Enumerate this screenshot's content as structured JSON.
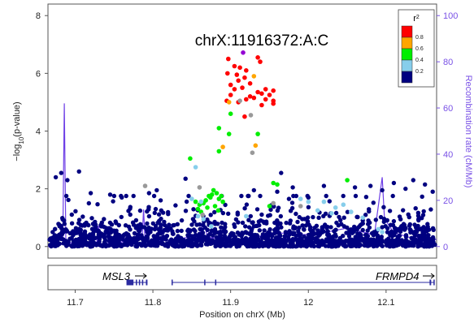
{
  "chart_data": {
    "type": "scatter",
    "title": "chrX:11916372:A:C",
    "xlabel": "Position on chrX (Mb)",
    "ylabel_left": "-log10(p-value)",
    "ylabel_left_base": "−log",
    "ylabel_left_sub": "10",
    "ylabel_left_rest": "(p-value)",
    "ylabel_right": "Recombination rate (cM/Mb)",
    "xlim": [
      11.665,
      12.165
    ],
    "ylim_left": [
      -0.4,
      8.4
    ],
    "ylim_right": [
      -5,
      105
    ],
    "x_ticks": [
      11.7,
      11.8,
      11.9,
      12.0,
      12.1
    ],
    "x_tick_labels": [
      "11.7",
      "11.8",
      "11.9",
      "12",
      "12.1"
    ],
    "y_left_ticks": [
      0,
      2,
      4,
      6,
      8
    ],
    "y_left_tick_labels": [
      "0",
      "2",
      "4",
      "6",
      "8"
    ],
    "y_right_ticks": [
      0,
      20,
      40,
      60,
      80,
      100
    ],
    "y_right_tick_labels": [
      "0",
      "20",
      "40",
      "60",
      "80",
      "100"
    ],
    "legend": {
      "title": "r",
      "title_sup": "2",
      "placement": "top-right",
      "entries": [
        {
          "label": "0.8",
          "color": "#ff0000"
        },
        {
          "label": "0.6",
          "color": "#ffa500"
        },
        {
          "label": "0.4",
          "color": "#00ee00"
        },
        {
          "label": "0.2",
          "color": "#87ceeb"
        },
        {
          "label": "",
          "color": "#000080"
        }
      ]
    },
    "colors": {
      "lead": "#9400d3",
      "r2_08": "#ff0000",
      "r2_06": "#ffa500",
      "r2_04": "#00ee00",
      "r2_02": "#87ceeb",
      "r2_00": "#000080",
      "na": "#999999",
      "recomb": "#6e3fe6",
      "right_axis": "#7a52e6"
    },
    "recombination": [
      [
        11.665,
        0
      ],
      [
        11.684,
        1
      ],
      [
        11.686,
        62
      ],
      [
        11.688,
        2
      ],
      [
        11.705,
        1
      ],
      [
        11.728,
        2
      ],
      [
        11.73,
        9
      ],
      [
        11.733,
        1
      ],
      [
        11.76,
        2
      ],
      [
        11.786,
        3
      ],
      [
        11.788,
        16
      ],
      [
        11.79,
        2
      ],
      [
        11.83,
        3
      ],
      [
        11.86,
        5
      ],
      [
        11.865,
        12
      ],
      [
        11.87,
        4
      ],
      [
        11.9,
        3
      ],
      [
        11.93,
        4
      ],
      [
        11.96,
        6
      ],
      [
        11.99,
        5
      ],
      [
        12.02,
        6
      ],
      [
        12.05,
        8
      ],
      [
        12.085,
        5
      ],
      [
        12.095,
        30
      ],
      [
        12.098,
        12
      ],
      [
        12.11,
        6
      ],
      [
        12.13,
        4
      ],
      [
        12.165,
        3
      ]
    ],
    "snps_highlight": [
      {
        "x": 11.916,
        "y": 6.72,
        "r2": "lead"
      },
      {
        "x": 11.935,
        "y": 6.55,
        "r2": "0.8"
      },
      {
        "x": 11.938,
        "y": 6.4,
        "r2": "0.8"
      },
      {
        "x": 11.897,
        "y": 6.5,
        "r2": "0.8"
      },
      {
        "x": 11.905,
        "y": 6.25,
        "r2": "0.8"
      },
      {
        "x": 11.912,
        "y": 6.2,
        "r2": "0.8"
      },
      {
        "x": 11.92,
        "y": 6.1,
        "r2": "0.8"
      },
      {
        "x": 11.896,
        "y": 6.0,
        "r2": "0.8"
      },
      {
        "x": 11.908,
        "y": 5.95,
        "r2": "0.8"
      },
      {
        "x": 11.918,
        "y": 5.85,
        "r2": "0.8"
      },
      {
        "x": 11.91,
        "y": 5.75,
        "r2": "0.8"
      },
      {
        "x": 11.925,
        "y": 5.65,
        "r2": "0.8"
      },
      {
        "x": 11.9,
        "y": 5.6,
        "r2": "0.8"
      },
      {
        "x": 11.915,
        "y": 5.5,
        "r2": "0.8"
      },
      {
        "x": 11.905,
        "y": 5.45,
        "r2": "0.8"
      },
      {
        "x": 11.945,
        "y": 5.45,
        "r2": "0.8"
      },
      {
        "x": 11.955,
        "y": 5.4,
        "r2": "0.8"
      },
      {
        "x": 11.935,
        "y": 5.35,
        "r2": "0.8"
      },
      {
        "x": 11.94,
        "y": 5.3,
        "r2": "0.8"
      },
      {
        "x": 11.95,
        "y": 5.25,
        "r2": "0.8"
      },
      {
        "x": 11.925,
        "y": 5.2,
        "r2": "0.8"
      },
      {
        "x": 11.93,
        "y": 5.15,
        "r2": "0.8"
      },
      {
        "x": 11.92,
        "y": 5.1,
        "r2": "0.8"
      },
      {
        "x": 11.945,
        "y": 5.1,
        "r2": "0.8"
      },
      {
        "x": 11.955,
        "y": 5.05,
        "r2": "0.8"
      },
      {
        "x": 11.9,
        "y": 5.25,
        "r2": "0.8"
      },
      {
        "x": 11.895,
        "y": 5.05,
        "r2": "0.8"
      },
      {
        "x": 11.91,
        "y": 5.0,
        "r2": "0.8"
      },
      {
        "x": 11.955,
        "y": 4.95,
        "r2": "0.8"
      },
      {
        "x": 11.94,
        "y": 4.9,
        "r2": "0.8"
      },
      {
        "x": 11.918,
        "y": 4.5,
        "r2": "0.8"
      },
      {
        "x": 11.93,
        "y": 5.9,
        "r2": "0.6"
      },
      {
        "x": 11.932,
        "y": 3.5,
        "r2": "0.6"
      },
      {
        "x": 11.89,
        "y": 3.45,
        "r2": "0.6"
      },
      {
        "x": 11.898,
        "y": 5.0,
        "r2": "0.6"
      },
      {
        "x": 11.9,
        "y": 4.6,
        "r2": "0.4"
      },
      {
        "x": 11.885,
        "y": 4.1,
        "r2": "0.4"
      },
      {
        "x": 11.898,
        "y": 3.9,
        "r2": "0.4"
      },
      {
        "x": 11.935,
        "y": 3.9,
        "r2": "0.4"
      },
      {
        "x": 11.885,
        "y": 3.3,
        "r2": "0.4"
      },
      {
        "x": 11.848,
        "y": 3.05,
        "r2": "0.4"
      },
      {
        "x": 11.955,
        "y": 2.2,
        "r2": "0.4"
      },
      {
        "x": 11.96,
        "y": 2.15,
        "r2": "0.4"
      },
      {
        "x": 12.05,
        "y": 2.3,
        "r2": "0.4"
      },
      {
        "x": 11.878,
        "y": 1.95,
        "r2": "0.4"
      },
      {
        "x": 11.882,
        "y": 1.85,
        "r2": "0.4"
      },
      {
        "x": 11.876,
        "y": 1.8,
        "r2": "0.4"
      },
      {
        "x": 11.872,
        "y": 1.75,
        "r2": "0.4"
      },
      {
        "x": 11.868,
        "y": 1.6,
        "r2": "0.4"
      },
      {
        "x": 11.874,
        "y": 1.7,
        "r2": "0.4"
      },
      {
        "x": 11.885,
        "y": 1.65,
        "r2": "0.4"
      },
      {
        "x": 11.888,
        "y": 1.75,
        "r2": "0.4"
      },
      {
        "x": 11.865,
        "y": 1.5,
        "r2": "0.4"
      },
      {
        "x": 11.86,
        "y": 1.45,
        "r2": "0.4"
      },
      {
        "x": 11.858,
        "y": 1.3,
        "r2": "0.4"
      },
      {
        "x": 11.88,
        "y": 1.4,
        "r2": "0.4"
      },
      {
        "x": 11.87,
        "y": 1.35,
        "r2": "0.4"
      },
      {
        "x": 11.855,
        "y": 1.55,
        "r2": "0.4"
      },
      {
        "x": 11.862,
        "y": 1.2,
        "r2": "0.4"
      },
      {
        "x": 11.89,
        "y": 1.55,
        "r2": "0.4"
      },
      {
        "x": 11.884,
        "y": 1.25,
        "r2": "0.4"
      },
      {
        "x": 11.95,
        "y": 1.4,
        "r2": "0.4"
      },
      {
        "x": 11.855,
        "y": 2.75,
        "r2": "0.2"
      },
      {
        "x": 11.85,
        "y": 1.65,
        "r2": "0.2"
      },
      {
        "x": 11.862,
        "y": 1.55,
        "r2": "0.2"
      },
      {
        "x": 11.858,
        "y": 1.05,
        "r2": "0.2"
      },
      {
        "x": 11.865,
        "y": 0.95,
        "r2": "0.2"
      },
      {
        "x": 11.99,
        "y": 1.65,
        "r2": "0.2"
      },
      {
        "x": 12.0,
        "y": 1.55,
        "r2": "0.2"
      },
      {
        "x": 12.02,
        "y": 1.55,
        "r2": "0.2"
      },
      {
        "x": 12.035,
        "y": 1.35,
        "r2": "0.2"
      },
      {
        "x": 12.045,
        "y": 1.45,
        "r2": "0.2"
      },
      {
        "x": 12.055,
        "y": 1.2,
        "r2": "0.2"
      },
      {
        "x": 12.012,
        "y": 1.25,
        "r2": "0.2"
      },
      {
        "x": 12.03,
        "y": 1.15,
        "r2": "0.2"
      },
      {
        "x": 12.07,
        "y": 1.0,
        "r2": "0.2"
      },
      {
        "x": 11.92,
        "y": 1.05,
        "r2": "0.2"
      },
      {
        "x": 11.875,
        "y": 0.7,
        "r2": "0.2"
      },
      {
        "x": 12.09,
        "y": 0.6,
        "r2": "0.2"
      },
      {
        "x": 12.095,
        "y": 0.5,
        "r2": "0.2"
      },
      {
        "x": 11.912,
        "y": 5.05,
        "r2": "NA"
      },
      {
        "x": 11.926,
        "y": 4.55,
        "r2": "NA"
      },
      {
        "x": 11.928,
        "y": 3.25,
        "r2": "NA"
      },
      {
        "x": 11.86,
        "y": 2.05,
        "r2": "NA"
      },
      {
        "x": 11.79,
        "y": 2.1,
        "r2": "NA"
      },
      {
        "x": 11.955,
        "y": 1.5,
        "r2": "NA"
      },
      {
        "x": 11.99,
        "y": 1.4,
        "r2": "NA"
      },
      {
        "x": 11.864,
        "y": 1.1,
        "r2": "NA"
      }
    ],
    "snps_background_peaks": [
      {
        "x": 11.675,
        "y": 2.4
      },
      {
        "x": 11.682,
        "y": 2.55
      },
      {
        "x": 11.69,
        "y": 2.3
      },
      {
        "x": 11.705,
        "y": 2.6
      },
      {
        "x": 11.72,
        "y": 1.85
      },
      {
        "x": 11.745,
        "y": 1.8
      },
      {
        "x": 11.76,
        "y": 1.7
      },
      {
        "x": 11.775,
        "y": 1.75
      },
      {
        "x": 11.795,
        "y": 1.85
      },
      {
        "x": 11.805,
        "y": 1.95
      },
      {
        "x": 11.81,
        "y": 1.6
      },
      {
        "x": 11.842,
        "y": 2.35
      },
      {
        "x": 11.846,
        "y": 1.75
      },
      {
        "x": 11.96,
        "y": 1.9
      },
      {
        "x": 11.965,
        "y": 2.55
      },
      {
        "x": 11.98,
        "y": 2.05
      },
      {
        "x": 12.0,
        "y": 1.7
      },
      {
        "x": 12.02,
        "y": 2.1
      },
      {
        "x": 12.06,
        "y": 2.05
      },
      {
        "x": 12.08,
        "y": 2.1
      },
      {
        "x": 12.095,
        "y": 1.95
      },
      {
        "x": 12.11,
        "y": 2.2
      },
      {
        "x": 12.125,
        "y": 2.0
      },
      {
        "x": 12.135,
        "y": 2.3
      },
      {
        "x": 12.15,
        "y": 2.15
      },
      {
        "x": 12.16,
        "y": 1.9
      },
      {
        "x": 11.93,
        "y": 1.95
      },
      {
        "x": 11.975,
        "y": 1.65
      }
    ],
    "genes": [
      {
        "name": "MSL3",
        "strand": "+",
        "start": 11.766,
        "end": 11.793,
        "exons": [
          [
            11.766,
            11.775
          ],
          [
            11.778,
            11.779
          ],
          [
            11.782,
            11.783
          ],
          [
            11.786,
            11.787
          ],
          [
            11.791,
            11.793
          ]
        ]
      },
      {
        "name": "FRMPD4",
        "strand": "+",
        "start": 11.824,
        "end": 12.162,
        "exons": [
          [
            11.824,
            11.825
          ],
          [
            11.866,
            11.867
          ],
          [
            11.88,
            11.881
          ],
          [
            12.156,
            12.158
          ],
          [
            12.161,
            12.162
          ]
        ]
      }
    ],
    "gene_label_msl3": "MSL3",
    "gene_label_frmpd4": "FRMPD4"
  }
}
